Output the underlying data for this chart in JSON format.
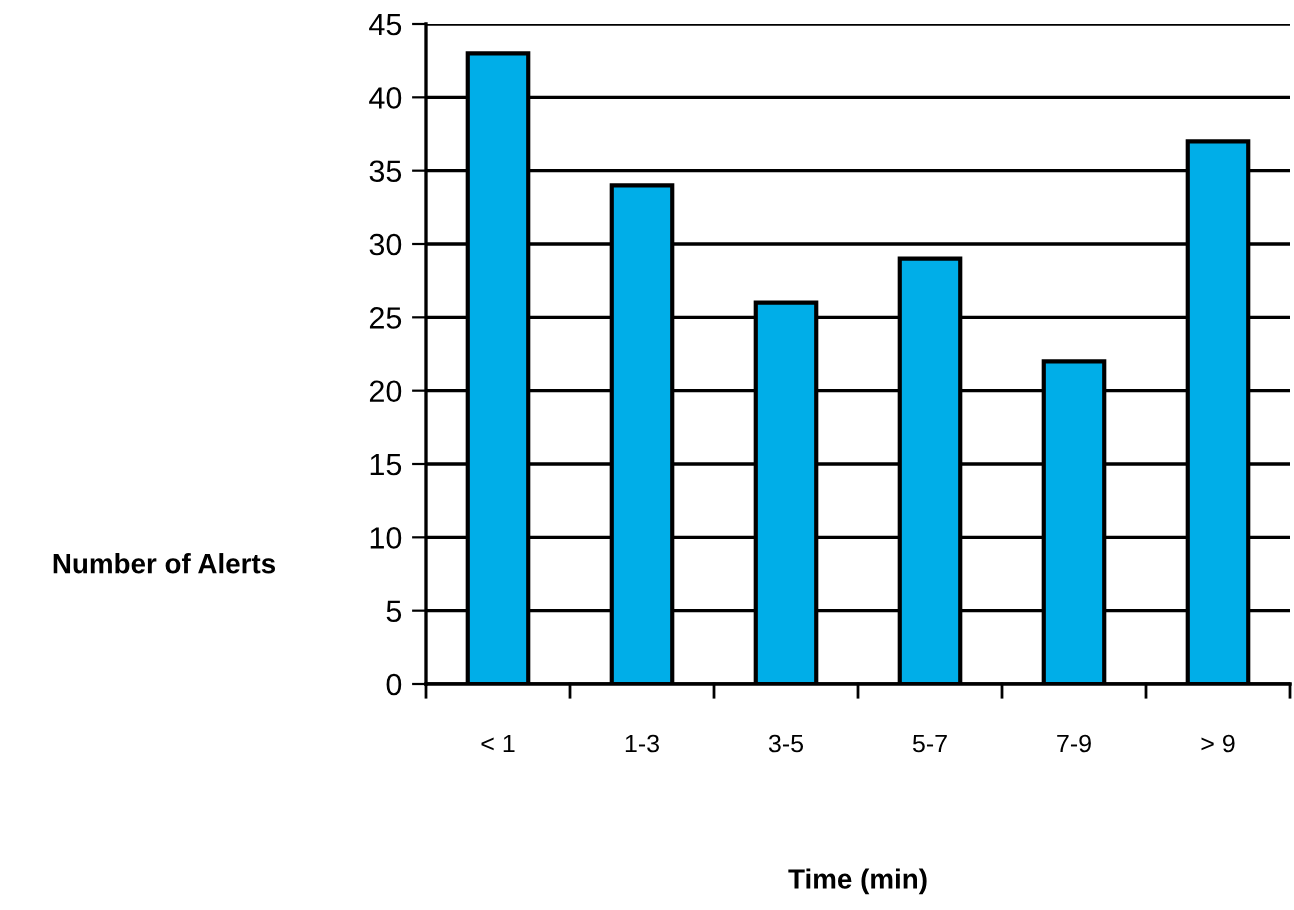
{
  "chart_data": {
    "type": "bar",
    "categories": [
      "< 1",
      "1-3",
      "3-5",
      "5-7",
      "7-9",
      "> 9"
    ],
    "values": [
      43,
      34,
      26,
      29,
      22,
      37
    ],
    "color": "#00aee8",
    "xlabel": "Time (min)",
    "ylabel": "Number of Alerts",
    "ylim": [
      0,
      45
    ],
    "yticks": [
      0,
      5,
      10,
      15,
      20,
      25,
      30,
      35,
      40,
      45
    ],
    "grid": "y"
  }
}
